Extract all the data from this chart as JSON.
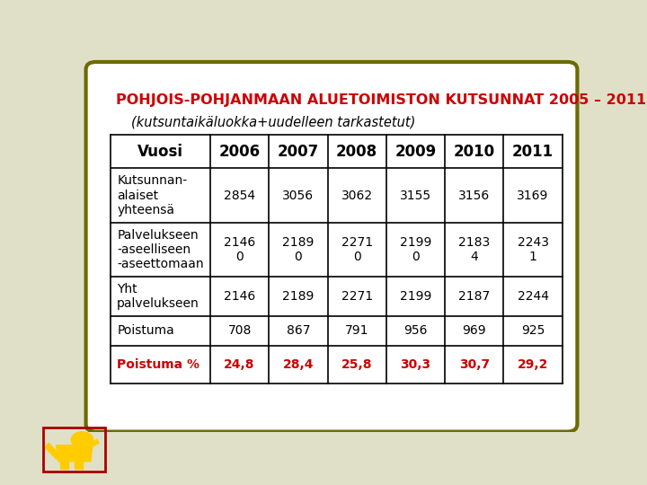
{
  "title_line1": "POHJOIS-POHJANMAAN ALUETOIMISTON KUTSUNNAT 2005 – 2011",
  "title_line2": "(kutsuntaikäluokka+uudelleen tarkastetut)",
  "title_color": "#cc0000",
  "subtitle_color": "#000000",
  "bg_color": "#ffffff",
  "border_color": "#6b6b00",
  "outer_bg": "#e0e0c8",
  "columns": [
    "Vuosi",
    "2006",
    "2007",
    "2008",
    "2009",
    "2010",
    "2011"
  ],
  "rows": [
    {
      "label": "Kutsunnan-\nalaiset\nyhteensä",
      "values": [
        "2854",
        "3056",
        "3062",
        "3155",
        "3156",
        "3169"
      ],
      "label_bold": false,
      "label_color": "#000000",
      "value_color": "#000000"
    },
    {
      "label": "Palvelukseen\n-aseelliseen\n-aseettomaan",
      "values": [
        "2146\n0",
        "2189\n0",
        "2271\n0",
        "2199\n0",
        "2183\n4",
        "2243\n1"
      ],
      "label_bold": false,
      "label_color": "#000000",
      "value_color": "#000000"
    },
    {
      "label": "Yht\npalvelukseen",
      "values": [
        "2146",
        "2189",
        "2271",
        "2199",
        "2187",
        "2244"
      ],
      "label_bold": false,
      "label_color": "#000000",
      "value_color": "#000000"
    },
    {
      "label": "Poistuma",
      "values": [
        "708",
        "867",
        "791",
        "956",
        "969",
        "925"
      ],
      "label_bold": false,
      "label_color": "#000000",
      "value_color": "#000000"
    },
    {
      "label": "Poistuma %",
      "values": [
        "24,8",
        "28,4",
        "25,8",
        "30,3",
        "30,7",
        "29,2"
      ],
      "label_bold": true,
      "label_color": "#cc0000",
      "value_color": "#cc0000"
    }
  ],
  "header_text_color": "#000000",
  "table_border_color": "#000000",
  "font_size_title": 11.5,
  "font_size_subtitle": 10.5,
  "font_size_table": 10,
  "font_size_header": 12
}
